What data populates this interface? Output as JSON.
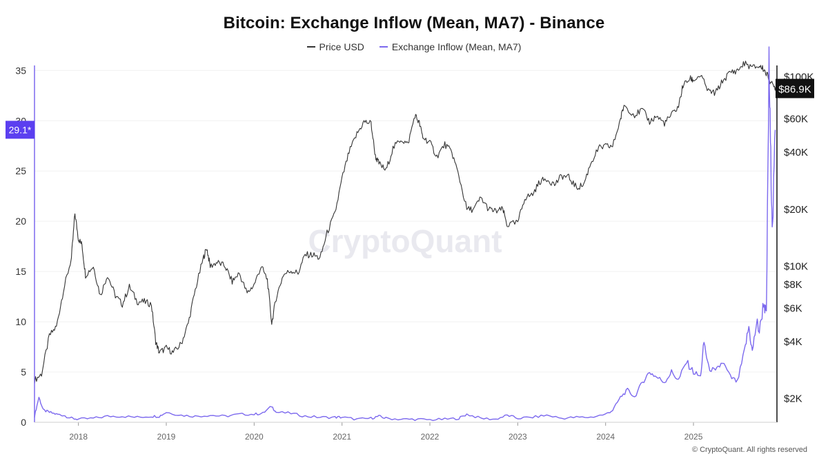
{
  "chart_data": {
    "type": "line",
    "title": "Bitcoin: Exchange Inflow (Mean, MA7) - Binance",
    "legend": [
      {
        "name": "Price USD",
        "color": "#333333"
      },
      {
        "name": "Exchange Inflow (Mean, MA7)",
        "color": "#7b68ee"
      }
    ],
    "x_ticks": [
      "2018",
      "2019",
      "2020",
      "2021",
      "2022",
      "2023",
      "2024",
      "2025"
    ],
    "x_range": [
      2017.5,
      2025.95
    ],
    "y_left": {
      "ticks": [
        0,
        5,
        10,
        15,
        20,
        25,
        30,
        35
      ],
      "range": [
        0,
        35.5
      ]
    },
    "y_right": {
      "ticks": [
        "$2K",
        "$4K",
        "$6K",
        "$8K",
        "$10K",
        "$20K",
        "$40K",
        "$60K",
        "$100K"
      ],
      "tick_values": [
        2000,
        4000,
        6000,
        8000,
        10000,
        20000,
        40000,
        60000,
        100000
      ],
      "scale": "log",
      "range": [
        1500,
        115000
      ]
    },
    "current_inflow_label": "29.1*",
    "current_inflow_value": 29.1,
    "current_price_label": "$86.9K",
    "current_price_value": 86900,
    "watermark": "CryptoQuant",
    "series": [
      {
        "name": "Price USD",
        "axis": "right",
        "points": [
          [
            2017.5,
            2500
          ],
          [
            2017.58,
            2700
          ],
          [
            2017.67,
            4300
          ],
          [
            2017.75,
            4800
          ],
          [
            2017.83,
            7500
          ],
          [
            2017.92,
            11000
          ],
          [
            2017.96,
            19000
          ],
          [
            2018.0,
            14000
          ],
          [
            2018.04,
            13000
          ],
          [
            2018.08,
            9000
          ],
          [
            2018.17,
            10000
          ],
          [
            2018.25,
            7000
          ],
          [
            2018.33,
            9000
          ],
          [
            2018.42,
            7000
          ],
          [
            2018.5,
            6300
          ],
          [
            2018.58,
            7800
          ],
          [
            2018.67,
            6500
          ],
          [
            2018.75,
            6500
          ],
          [
            2018.83,
            6300
          ],
          [
            2018.88,
            4000
          ],
          [
            2018.92,
            3500
          ],
          [
            2019.0,
            3700
          ],
          [
            2019.08,
            3500
          ],
          [
            2019.17,
            3900
          ],
          [
            2019.25,
            5000
          ],
          [
            2019.33,
            7500
          ],
          [
            2019.42,
            11000
          ],
          [
            2019.46,
            12500
          ],
          [
            2019.5,
            10000
          ],
          [
            2019.58,
            10500
          ],
          [
            2019.67,
            10000
          ],
          [
            2019.75,
            8300
          ],
          [
            2019.83,
            9200
          ],
          [
            2019.92,
            7200
          ],
          [
            2020.0,
            8000
          ],
          [
            2020.08,
            10000
          ],
          [
            2020.15,
            8500
          ],
          [
            2020.2,
            5000
          ],
          [
            2020.25,
            6800
          ],
          [
            2020.33,
            9000
          ],
          [
            2020.42,
            9500
          ],
          [
            2020.5,
            9200
          ],
          [
            2020.58,
            11500
          ],
          [
            2020.67,
            11500
          ],
          [
            2020.75,
            11000
          ],
          [
            2020.83,
            15000
          ],
          [
            2020.92,
            19000
          ],
          [
            2021.0,
            29000
          ],
          [
            2021.08,
            40000
          ],
          [
            2021.17,
            50000
          ],
          [
            2021.25,
            58000
          ],
          [
            2021.33,
            57000
          ],
          [
            2021.38,
            38000
          ],
          [
            2021.42,
            35000
          ],
          [
            2021.5,
            32000
          ],
          [
            2021.58,
            42000
          ],
          [
            2021.67,
            47000
          ],
          [
            2021.75,
            44000
          ],
          [
            2021.83,
            63000
          ],
          [
            2021.88,
            57000
          ],
          [
            2021.92,
            48000
          ],
          [
            2022.0,
            45000
          ],
          [
            2022.08,
            38000
          ],
          [
            2022.17,
            44000
          ],
          [
            2022.25,
            40000
          ],
          [
            2022.33,
            30000
          ],
          [
            2022.42,
            20000
          ],
          [
            2022.5,
            20000
          ],
          [
            2022.58,
            23000
          ],
          [
            2022.67,
            20000
          ],
          [
            2022.75,
            19500
          ],
          [
            2022.83,
            20000
          ],
          [
            2022.88,
            16500
          ],
          [
            2023.0,
            17000
          ],
          [
            2023.08,
            23000
          ],
          [
            2023.17,
            24000
          ],
          [
            2023.25,
            28000
          ],
          [
            2023.33,
            29000
          ],
          [
            2023.42,
            27000
          ],
          [
            2023.5,
            30000
          ],
          [
            2023.58,
            29500
          ],
          [
            2023.67,
            26000
          ],
          [
            2023.75,
            27000
          ],
          [
            2023.83,
            35000
          ],
          [
            2023.92,
            42000
          ],
          [
            2024.0,
            43000
          ],
          [
            2024.08,
            43000
          ],
          [
            2024.17,
            60000
          ],
          [
            2024.21,
            71000
          ],
          [
            2024.33,
            63000
          ],
          [
            2024.42,
            67000
          ],
          [
            2024.5,
            58000
          ],
          [
            2024.58,
            62000
          ],
          [
            2024.67,
            57000
          ],
          [
            2024.75,
            63000
          ],
          [
            2024.83,
            70000
          ],
          [
            2024.88,
            90000
          ],
          [
            2024.96,
            98000
          ],
          [
            2025.0,
            96000
          ],
          [
            2025.08,
            102000
          ],
          [
            2025.17,
            84000
          ],
          [
            2025.25,
            82000
          ],
          [
            2025.33,
            95000
          ],
          [
            2025.42,
            106000
          ],
          [
            2025.5,
            108000
          ],
          [
            2025.58,
            118000
          ],
          [
            2025.67,
            112000
          ],
          [
            2025.75,
            114000
          ],
          [
            2025.8,
            110000
          ],
          [
            2025.85,
            100000
          ],
          [
            2025.9,
            90000
          ],
          [
            2025.95,
            86900
          ]
        ]
      },
      {
        "name": "Exchange Inflow (Mean, MA7)",
        "axis": "left",
        "points": [
          [
            2017.5,
            0.6
          ],
          [
            2017.55,
            2.5
          ],
          [
            2017.6,
            1.2
          ],
          [
            2017.67,
            1.0
          ],
          [
            2017.75,
            0.8
          ],
          [
            2017.83,
            0.7
          ],
          [
            2017.92,
            0.4
          ],
          [
            2018.0,
            0.3
          ],
          [
            2018.17,
            0.4
          ],
          [
            2018.33,
            0.6
          ],
          [
            2018.5,
            0.6
          ],
          [
            2018.67,
            0.5
          ],
          [
            2018.83,
            0.6
          ],
          [
            2018.92,
            0.6
          ],
          [
            2019.0,
            1.0
          ],
          [
            2019.17,
            0.7
          ],
          [
            2019.33,
            0.6
          ],
          [
            2019.5,
            0.7
          ],
          [
            2019.67,
            0.6
          ],
          [
            2019.83,
            0.8
          ],
          [
            2020.0,
            0.8
          ],
          [
            2020.1,
            0.9
          ],
          [
            2020.2,
            1.6
          ],
          [
            2020.25,
            1.0
          ],
          [
            2020.42,
            0.9
          ],
          [
            2020.58,
            0.6
          ],
          [
            2020.75,
            0.5
          ],
          [
            2020.92,
            0.5
          ],
          [
            2021.0,
            0.5
          ],
          [
            2021.17,
            0.3
          ],
          [
            2021.33,
            0.4
          ],
          [
            2021.42,
            0.6
          ],
          [
            2021.5,
            0.4
          ],
          [
            2021.67,
            0.3
          ],
          [
            2021.83,
            0.3
          ],
          [
            2022.0,
            0.25
          ],
          [
            2022.17,
            0.3
          ],
          [
            2022.33,
            0.4
          ],
          [
            2022.42,
            0.8
          ],
          [
            2022.58,
            0.4
          ],
          [
            2022.75,
            0.3
          ],
          [
            2022.88,
            0.7
          ],
          [
            2023.0,
            0.4
          ],
          [
            2023.17,
            0.5
          ],
          [
            2023.33,
            0.7
          ],
          [
            2023.5,
            0.4
          ],
          [
            2023.67,
            0.5
          ],
          [
            2023.83,
            0.5
          ],
          [
            2024.0,
            0.8
          ],
          [
            2024.08,
            1.2
          ],
          [
            2024.17,
            2.5
          ],
          [
            2024.25,
            3.2
          ],
          [
            2024.33,
            2.5
          ],
          [
            2024.42,
            4.0
          ],
          [
            2024.5,
            5.0
          ],
          [
            2024.58,
            4.5
          ],
          [
            2024.67,
            4.0
          ],
          [
            2024.75,
            5.0
          ],
          [
            2024.83,
            4.2
          ],
          [
            2024.92,
            6.0
          ],
          [
            2025.0,
            5.0
          ],
          [
            2025.08,
            4.5
          ],
          [
            2025.12,
            8.0
          ],
          [
            2025.17,
            5.5
          ],
          [
            2025.25,
            5.0
          ],
          [
            2025.33,
            6.0
          ],
          [
            2025.42,
            4.5
          ],
          [
            2025.5,
            4.0
          ],
          [
            2025.58,
            7.0
          ],
          [
            2025.63,
            9.5
          ],
          [
            2025.67,
            7.0
          ],
          [
            2025.72,
            10.0
          ],
          [
            2025.75,
            9.0
          ],
          [
            2025.8,
            12.0
          ],
          [
            2025.83,
            10.5
          ],
          [
            2025.86,
            35.5
          ],
          [
            2025.88,
            26.0
          ],
          [
            2025.9,
            19.0
          ],
          [
            2025.93,
            29.1
          ]
        ]
      }
    ]
  }
}
